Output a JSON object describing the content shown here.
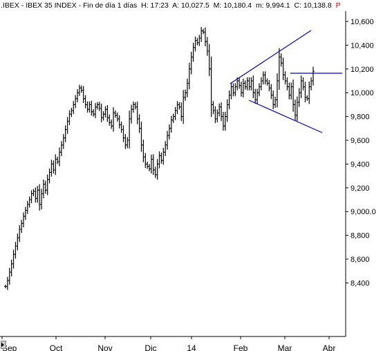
{
  "header": {
    "ticker": ".IBEX",
    "sep1": " - ",
    "name": "IBEX 35 INDEX",
    "sep2": " - ",
    "period": "Fin de día 1 días",
    "high": "H: 17:23",
    "open": "A: 10,027.5",
    "mid": "M: 10,180.4",
    "low": "m: 9,994.1",
    "close": "C: 10,138.8",
    "flag": "P"
  },
  "colors": {
    "bars": "#000000",
    "trendlines": "#0000cc",
    "flag": "#d00000"
  },
  "chart_data": {
    "type": "ohlc",
    "interval": "daily",
    "y_axis_position": "right",
    "ylim": [
      8330,
      10600
    ],
    "y_ticks": [
      "10,600",
      "10,400",
      "10,200",
      "10,000",
      "9,800",
      "9,600",
      "9,400",
      "9,200",
      "9,000.0",
      "8,800",
      "8,600",
      "8,400"
    ],
    "y_tick_values": [
      10600,
      10400,
      10200,
      10000,
      9800,
      9600,
      9400,
      9200,
      9000,
      8800,
      8600,
      8400
    ],
    "x_ticks": [
      "Sep",
      "Oct",
      "Nov",
      "Dic",
      "14",
      "Feb",
      "Mar",
      "Abr"
    ],
    "bars": [
      8370,
      8420,
      8490,
      8560,
      8640,
      8710,
      8780,
      8850,
      8900,
      8960,
      9010,
      9060,
      9100,
      9150,
      9170,
      9110,
      9180,
      9060,
      9150,
      9230,
      9180,
      9270,
      9330,
      9400,
      9350,
      9440,
      9420,
      9500,
      9560,
      9620,
      9690,
      9760,
      9820,
      9850,
      9900,
      9950,
      10000,
      10040,
      10020,
      9950,
      9900,
      9860,
      9900,
      9840,
      9820,
      9880,
      9900,
      9870,
      9790,
      9820,
      9860,
      9790,
      9750,
      9720,
      9830,
      9810,
      9780,
      9730,
      9690,
      9620,
      9560,
      9600,
      9780,
      9860,
      9900,
      9880,
      9780,
      9700,
      9560,
      9460,
      9400,
      9380,
      9360,
      9440,
      9350,
      9310,
      9400,
      9470,
      9430,
      9500,
      9560,
      9640,
      9700,
      9770,
      9800,
      9850,
      9900,
      9880,
      9800,
      9960,
      10000,
      10080,
      10200,
      10300,
      10380,
      10440,
      10420,
      10460,
      10520,
      10510,
      10430,
      10350,
      10200,
      9900,
      9850,
      9780,
      9830,
      9880,
      9800,
      9720,
      9800,
      9900,
      9980,
      10050,
      10000,
      10050,
      10100,
      10060,
      10000,
      10080,
      10050,
      10100,
      10050,
      10100,
      10000,
      9940,
      10000,
      10050,
      10100,
      10150,
      10100,
      10080,
      10040,
      9980,
      9900,
      9940,
      10100,
      10300,
      10250,
      10150,
      10100,
      10050,
      9980,
      10050,
      9900,
      9810,
      9920,
      10000,
      10100,
      10050,
      9960,
      9950,
      10050,
      10100,
      10180
    ]
  }
}
